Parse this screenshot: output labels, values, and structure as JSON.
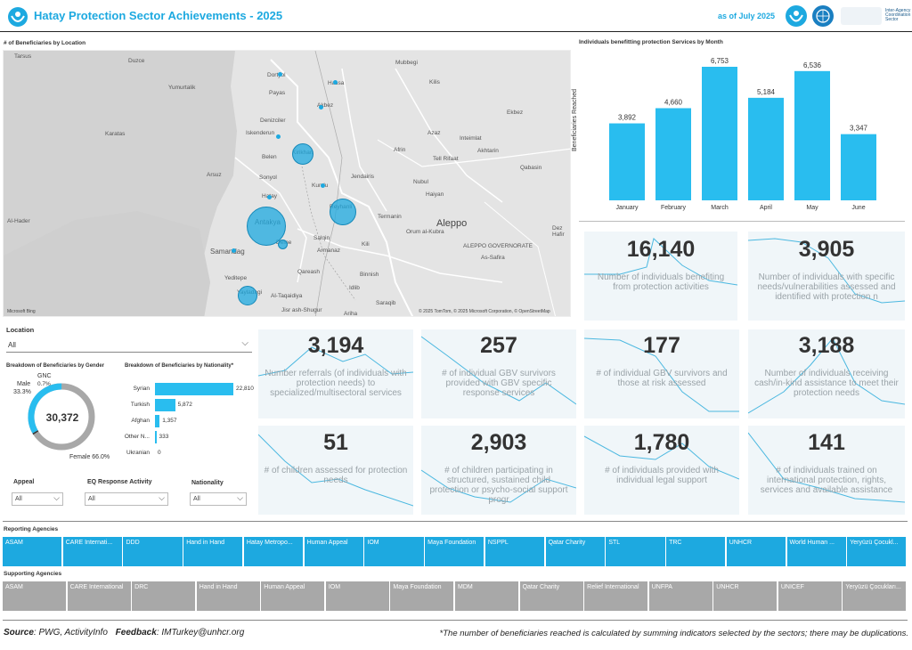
{
  "header": {
    "title": "Hatay Protection Sector Achievements - 2025",
    "as_of": "as of July 2025",
    "sector_text": "Inter-Agency Coordination Sector"
  },
  "map": {
    "title": "# of Beneficiaries by Location",
    "attribution": "© 2025 TomTom, © 2025 Microsoft Corporation, © OpenStreetMap",
    "brand": "Microsoft Bing",
    "labels": [
      "Tarsus",
      "Duzce",
      "Yumurtalik",
      "Karatas",
      "Dortyol",
      "Payas",
      "Denizciler",
      "Iskenderun",
      "Belen",
      "Sonyol",
      "Arsuz",
      "Hatay",
      "Antakya",
      "Defne",
      "Samandag",
      "Yeditepe",
      "Yayladagi",
      "Hassa",
      "Akbez",
      "Kirikhan",
      "Kumlu",
      "Reyhanli",
      "Afrin",
      "Jendairis",
      "Nubul",
      "Haiyan",
      "Mubbegi",
      "Kilis",
      "Ekbez",
      "Azaz",
      "Inteimlat",
      "Akhtarin",
      "Tell Rifaat",
      "Qabasin",
      "Aleppo",
      "ALEPPO GOVERNORATE",
      "As-Safira",
      "Termanin",
      "Orum al-Kubra",
      "Salqin",
      "Armanaz",
      "Kili",
      "Binnish",
      "Idlib",
      "Qareash",
      "Saraqib",
      "Al-Taqaidiya",
      "Jisr ash-Shugur",
      "Ariha",
      "Dez Hafir",
      "Al-Hader"
    ]
  },
  "location_filter": {
    "label": "Location",
    "value": "All"
  },
  "gender": {
    "title": "Breakdown of Beneficiaries by Gender",
    "total": "30,372",
    "male_label": "Male",
    "male_pct": "33.3%",
    "gnc_label": "GNC",
    "gnc_pct": "0.7%",
    "female_label": "Female 66.0%",
    "male_value": 33.3,
    "gnc_value": 0.7,
    "female_value": 66.0
  },
  "nationality": {
    "title": "Breakdown of Beneficiaries by Nationality*",
    "rows": [
      {
        "name": "Syrian",
        "value": 22810,
        "label": "22,810"
      },
      {
        "name": "Turkish",
        "value": 5872,
        "label": "5,872"
      },
      {
        "name": "Afghan",
        "value": 1357,
        "label": "1,357"
      },
      {
        "name": "Other N...",
        "value": 333,
        "label": "333"
      },
      {
        "name": "Ukranian",
        "value": 0,
        "label": "0"
      }
    ]
  },
  "filters": {
    "appeal_label": "Appeal",
    "appeal_value": "All",
    "eq_label": "EQ Response Activity",
    "eq_value": "All",
    "nat_label": "Nationality",
    "nat_value": "All"
  },
  "chart_data": {
    "type": "bar",
    "title": "Individuals benefitting protection Services by Month",
    "ylabel": "Beneficiaries Reached",
    "xlabel": "",
    "categories": [
      "January",
      "February",
      "March",
      "April",
      "May",
      "June"
    ],
    "values": [
      3892,
      4660,
      6753,
      5184,
      6536,
      3347
    ],
    "value_labels": [
      "3,892",
      "4,660",
      "6,753",
      "5,184",
      "6,536",
      "3,347"
    ],
    "ylim": [
      0,
      6753
    ],
    "color": "#29bdef"
  },
  "kpis": [
    {
      "value": "16,140",
      "desc": "Number of individuals benefiting from protection activities"
    },
    {
      "value": "3,905",
      "desc": "Number of individuals with specific needs/vulnerabilities assessed and identified with protection n"
    },
    {
      "value": "3,194",
      "desc": "Number referrals (of individuals with protection needs) to specialized/multisectoral services"
    },
    {
      "value": "257",
      "desc": "# of individual GBV survivors provided with GBV specific response services"
    },
    {
      "value": "177",
      "desc": "# of individual GBV survivors and those at risk assessed"
    },
    {
      "value": "3,188",
      "desc": "Number of individuals receiving cash/in-kind assistance to meet their protection needs"
    },
    {
      "value": "51",
      "desc": "# of children assessed for protection needs"
    },
    {
      "value": "2,903",
      "desc": "# of children participating in structured, sustained child protection or psycho-social support progr"
    },
    {
      "value": "1,780",
      "desc": "# of individuals provided with individual legal support"
    },
    {
      "value": "141",
      "desc": "# of individuals trained on international protection, rights, services and available assistance"
    }
  ],
  "reporting": {
    "title": "Reporting Agencies",
    "items": [
      "ASAM",
      "CARE Internati...",
      "DDD",
      "Hand in Hand",
      "Hatay Metropo...",
      "Human Appeal",
      "IOM",
      "Maya Foundation",
      "NSPPL",
      "Qatar Charity",
      "STL",
      "TRC",
      "UNHCR",
      "World Human ...",
      "Yeryüzü Çocukl..."
    ]
  },
  "supporting": {
    "title": "Supporting Agencies",
    "items": [
      "ASAM",
      "CARE International",
      "DRC",
      "Hand in Hand",
      "Human Appeal",
      "IOM",
      "Maya Foundation",
      "MDM",
      "Qatar Charity",
      "Relief International",
      "UNFPA",
      "UNHCR",
      "UNICEF",
      "Yeryüzü Çocukları..."
    ]
  },
  "footer": {
    "source_label": "Source",
    "source_text": ": PWG, ActivityInfo",
    "feedback_label": "Feedback",
    "feedback_text": ": IMTurkey@unhcr.org",
    "note": "*The number of beneficiaries reached is calculated by summing indicators selected by the sectors; there may be duplications."
  },
  "colors": {
    "accent": "#1da9e0",
    "bar": "#29bdef",
    "grey": "#a8a8a8"
  }
}
